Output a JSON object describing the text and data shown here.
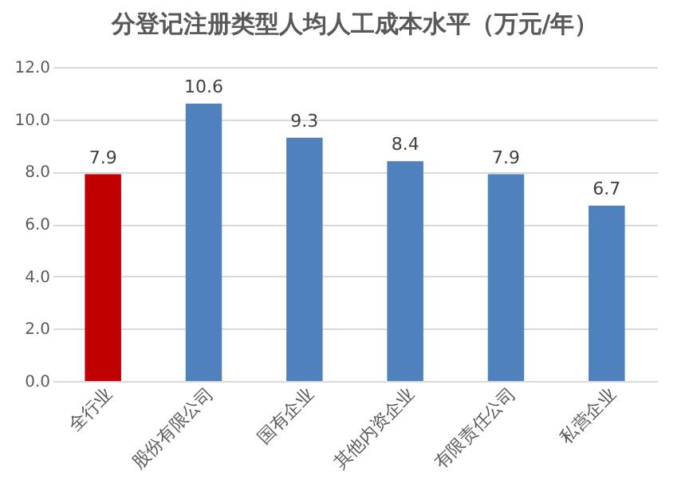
{
  "chart_data": {
    "type": "bar",
    "title": "分登记注册类型人均人工成本水平（万元/年）",
    "categories": [
      "全行业",
      "股份有限公司",
      "国有企业",
      "其他内资企业",
      "有限责任公司",
      "私营企业"
    ],
    "values": [
      7.9,
      10.6,
      9.3,
      8.4,
      7.9,
      6.7
    ],
    "colors": [
      "#c00000",
      "#4f81bd",
      "#4f81bd",
      "#4f81bd",
      "#4f81bd",
      "#4f81bd"
    ],
    "ylim": [
      0,
      12
    ],
    "yticks": [
      {
        "value": 0,
        "label": "0.0"
      },
      {
        "value": 2,
        "label": "2.0"
      },
      {
        "value": 4,
        "label": "4.0"
      },
      {
        "value": 6,
        "label": "6.0"
      },
      {
        "value": 8,
        "label": "8.0"
      },
      {
        "value": 10,
        "label": "10.0"
      },
      {
        "value": 12,
        "label": "12.0"
      }
    ],
    "grid": "y",
    "data_labels": true
  }
}
